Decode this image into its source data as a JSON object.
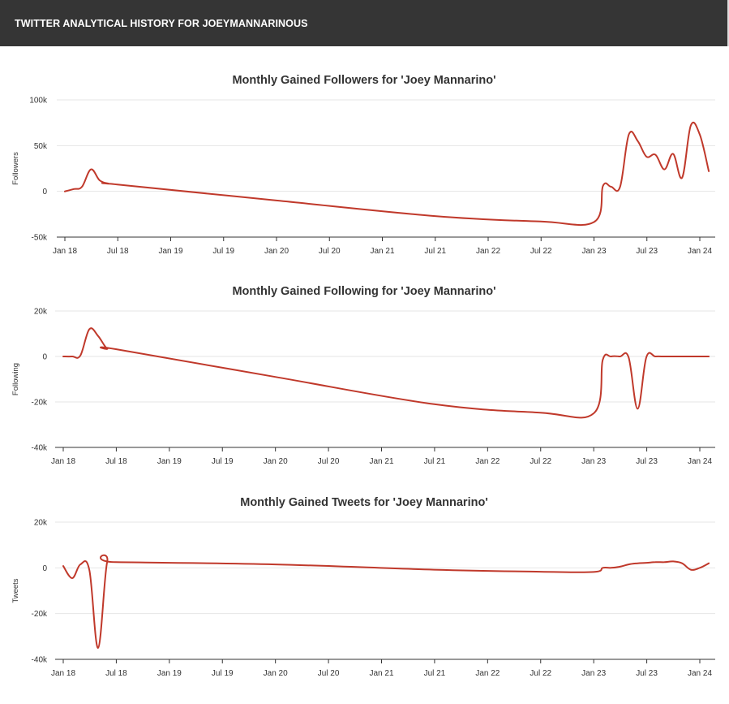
{
  "header": {
    "title": "TWITTER ANALYTICAL HISTORY FOR JOEYMANNARINOUS",
    "background": "#353535"
  },
  "chart_data": [
    {
      "type": "line",
      "title": "Monthly Gained Followers for 'Joey Mannarino'",
      "ylabel": "Followers",
      "xlabel": "",
      "ylim": [
        -50000,
        100000
      ],
      "yticks": [
        {
          "value": -50000,
          "label": "-50k"
        },
        {
          "value": 0,
          "label": "0"
        },
        {
          "value": 50000,
          "label": "50k"
        },
        {
          "value": 100000,
          "label": "100k"
        }
      ],
      "xticks": [
        "Jan 18",
        "Jul 18",
        "Jan 19",
        "Jul 19",
        "Jan 20",
        "Jul 20",
        "Jan 21",
        "Jul 21",
        "Jan 22",
        "Jul 22",
        "Jan 23",
        "Jul 23",
        "Jan 24"
      ],
      "grid": true,
      "color": "#c0392b",
      "series": [
        {
          "x": [
            "2018-01",
            "2018-02",
            "2018-03",
            "2018-04",
            "2018-05",
            "2018-06",
            "2018-07",
            "2020-01",
            "2021-07",
            "2022-07",
            "2023-01",
            "2023-02",
            "2023-03",
            "2023-04",
            "2023-05",
            "2023-06",
            "2023-07",
            "2023-08",
            "2023-09",
            "2023-10",
            "2023-11",
            "2023-12",
            "2024-01",
            "2024-02"
          ],
          "y": [
            0,
            2500,
            5000,
            24000,
            12000,
            8500,
            7500,
            -10000,
            -27000,
            -33000,
            -33500,
            6000,
            5000,
            5000,
            62000,
            55000,
            38000,
            40000,
            24000,
            41000,
            15000,
            72000,
            62000,
            22000
          ]
        }
      ]
    },
    {
      "type": "line",
      "title": "Monthly Gained Following for 'Joey Mannarino'",
      "ylabel": "Following",
      "xlabel": "",
      "ylim": [
        -40000,
        20000
      ],
      "yticks": [
        {
          "value": -40000,
          "label": "-40k"
        },
        {
          "value": -20000,
          "label": "-20k"
        },
        {
          "value": 0,
          "label": "0"
        },
        {
          "value": 20000,
          "label": "20k"
        }
      ],
      "xticks": [
        "Jan 18",
        "Jul 18",
        "Jan 19",
        "Jul 19",
        "Jan 20",
        "Jul 20",
        "Jan 21",
        "Jul 21",
        "Jan 22",
        "Jul 22",
        "Jan 23",
        "Jul 23",
        "Jan 24"
      ],
      "grid": true,
      "color": "#c0392b",
      "series": [
        {
          "x": [
            "2018-01",
            "2018-02",
            "2018-03",
            "2018-04",
            "2018-05",
            "2018-06",
            "2018-07",
            "2020-01",
            "2021-07",
            "2022-07",
            "2023-01",
            "2023-02",
            "2023-03",
            "2023-04",
            "2023-05",
            "2023-06",
            "2023-07",
            "2023-08",
            "2023-09",
            "2023-10",
            "2023-11",
            "2023-12",
            "2024-01",
            "2024-02"
          ],
          "y": [
            0,
            0,
            400,
            12000,
            9000,
            3500,
            3200,
            -9000,
            -21000,
            -24700,
            -25000,
            -1500,
            0,
            0,
            -400,
            -23000,
            -300,
            0,
            0,
            0,
            0,
            0,
            0,
            0
          ]
        }
      ]
    },
    {
      "type": "line",
      "title": "Monthly Gained Tweets for 'Joey Mannarino'",
      "ylabel": "Tweets",
      "xlabel": "",
      "ylim": [
        -40000,
        20000
      ],
      "yticks": [
        {
          "value": -40000,
          "label": "-40k"
        },
        {
          "value": -20000,
          "label": "-20k"
        },
        {
          "value": 0,
          "label": "0"
        },
        {
          "value": 20000,
          "label": "20k"
        }
      ],
      "xticks": [
        "Jan 18",
        "Jul 18",
        "Jan 19",
        "Jul 19",
        "Jan 20",
        "Jul 20",
        "Jan 21",
        "Jul 21",
        "Jan 22",
        "Jul 22",
        "Jan 23",
        "Jul 23",
        "Jan 24"
      ],
      "grid": true,
      "color": "#c0392b",
      "series": [
        {
          "x": [
            "2018-01",
            "2018-02",
            "2018-03",
            "2018-04",
            "2018-05",
            "2018-06",
            "2018-07",
            "2020-01",
            "2021-07",
            "2022-07",
            "2023-01",
            "2023-02",
            "2023-03",
            "2023-04",
            "2023-05",
            "2023-06",
            "2023-07",
            "2023-08",
            "2023-09",
            "2023-10",
            "2023-11",
            "2023-12",
            "2024-01",
            "2024-02"
          ],
          "y": [
            800,
            -4500,
            1500,
            -1000,
            -35000,
            2500,
            2500,
            1500,
            -800,
            -1700,
            -1800,
            0,
            0,
            500,
            1500,
            2000,
            2200,
            2500,
            2500,
            2800,
            2000,
            -800,
            0,
            2000
          ]
        }
      ]
    }
  ]
}
